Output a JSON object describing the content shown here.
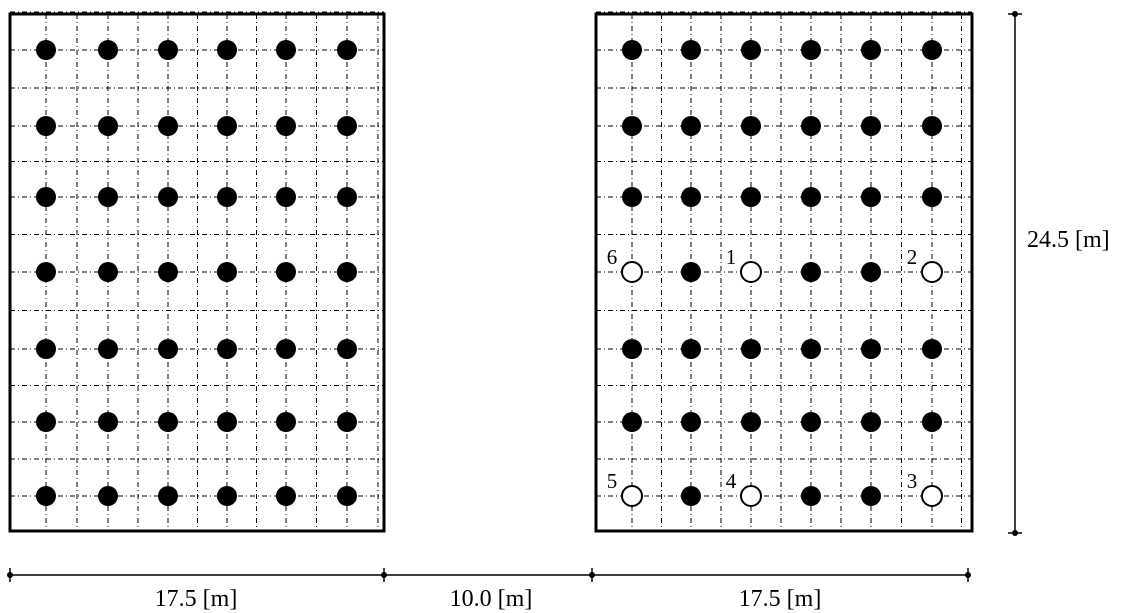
{
  "layout": {
    "left_field": {
      "rows": 7,
      "columns": 6
    },
    "right_field": {
      "rows": 7,
      "columns": 6
    }
  },
  "dimensions": {
    "left_width": "17.5 [m]",
    "gap": "10.0 [m]",
    "right_width": "17.5 [m]",
    "height": "24.5 [m]"
  },
  "observation_wells": [
    {
      "label": "1",
      "row": 4,
      "col": 3
    },
    {
      "label": "2",
      "row": 4,
      "col": 6
    },
    {
      "label": "3",
      "row": 7,
      "col": 6
    },
    {
      "label": "4",
      "row": 7,
      "col": 3
    },
    {
      "label": "5",
      "row": 7,
      "col": 1
    },
    {
      "label": "6",
      "row": 4,
      "col": 1
    }
  ],
  "colors": {
    "filled": "#000000",
    "open_fill": "#ffffff",
    "stroke": "#000000"
  }
}
